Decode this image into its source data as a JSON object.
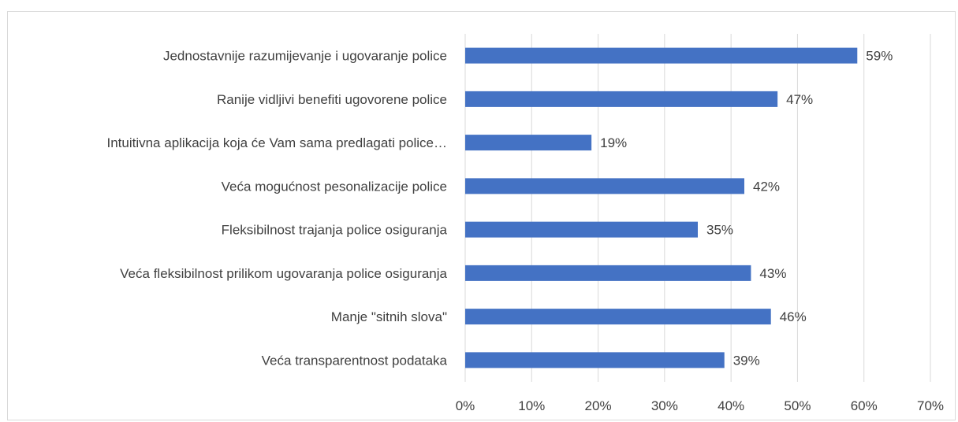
{
  "chart_data": {
    "type": "bar",
    "orientation": "horizontal",
    "title": "",
    "xlabel": "",
    "ylabel": "",
    "categories": [
      "Jednostavnije razumijevanje i ugovaranje police",
      "Ranije vidljivi benefiti ugovorene police",
      "Intuitivna aplikacija koja će Vam sama predlagati police…",
      "Veća mogućnost pesonalizacije police",
      "Fleksibilnost trajanja police osiguranja",
      "Veća fleksibilnost prilikom ugovaranja police osiguranja",
      "Manje \"sitnih slova\"",
      "Veća transparentnost podataka"
    ],
    "values": [
      0.59,
      0.47,
      0.19,
      0.42,
      0.35,
      0.43,
      0.46,
      0.39
    ],
    "value_labels": [
      "59%",
      "47%",
      "19%",
      "42%",
      "35%",
      "43%",
      "46%",
      "39%"
    ],
    "xlim": [
      0,
      0.7
    ],
    "ticks": [
      0,
      0.1,
      0.2,
      0.3,
      0.4,
      0.5,
      0.6,
      0.7
    ],
    "tick_labels": [
      "0%",
      "10%",
      "20%",
      "30%",
      "40%",
      "50%",
      "60%",
      "70%"
    ],
    "grid": "vertical",
    "legend": "none",
    "bar_color": "#4472c4",
    "grid_color": "#d9d9d9",
    "text_color": "#404040"
  }
}
